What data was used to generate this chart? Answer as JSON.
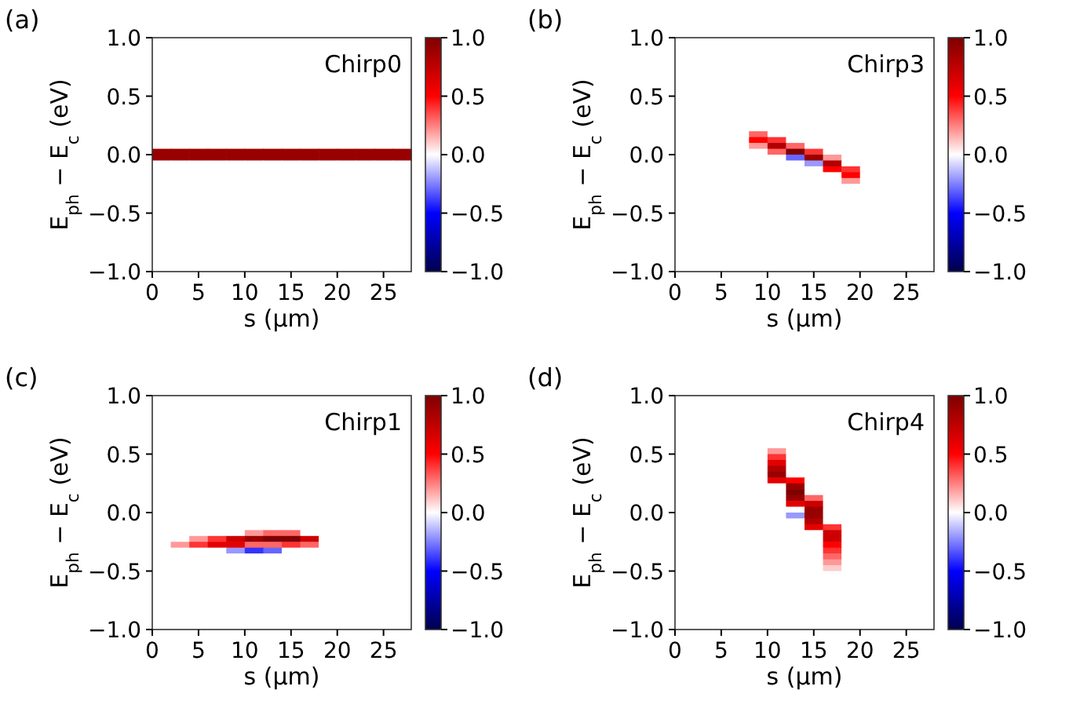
{
  "chart_data": [
    {
      "type": "heatmap",
      "title": "(a)",
      "xlabel": "s (µm)",
      "ylabel": "E$_{ph}$ − E$_{c}$ (eV)",
      "annotations": [
        "Chirp0"
      ],
      "xlim": [
        0,
        28
      ],
      "xticks": [
        0,
        5,
        10,
        15,
        20,
        25
      ],
      "ylim": [
        -1,
        1
      ],
      "yticks": [
        {
          "value": -1,
          "label": "−1.0"
        },
        {
          "value": -0.5,
          "label": "−0.5"
        },
        {
          "value": 0,
          "label": "0.0"
        },
        {
          "value": 0.5,
          "label": "0.5"
        },
        {
          "value": 1,
          "label": "1.0"
        }
      ],
      "clim": [
        -1,
        1
      ],
      "cticks": [
        {
          "value": -1,
          "label": "−1.0"
        },
        {
          "value": -0.5,
          "label": "−0.5"
        },
        {
          "value": 0,
          "label": "0.0"
        },
        {
          "value": 0.5,
          "label": "0.5"
        },
        {
          "value": 1,
          "label": "1.0"
        }
      ],
      "cells": [
        [
          0,
          0,
          0,
          0,
          0,
          0,
          0,
          0,
          0,
          0,
          0,
          0,
          0,
          0
        ],
        [
          0,
          0,
          0,
          0,
          0,
          0,
          0,
          0,
          0,
          0,
          0,
          0,
          0,
          0
        ],
        [
          0,
          0,
          0,
          0,
          0,
          0,
          0,
          0,
          0,
          0,
          0,
          0,
          0,
          0
        ],
        [
          0,
          0,
          0,
          0,
          0,
          0,
          0,
          0,
          0,
          0,
          0,
          0,
          0,
          0
        ],
        [
          0,
          0,
          0,
          0,
          0,
          0,
          0,
          0,
          0,
          0,
          0,
          0,
          0,
          0
        ],
        [
          0,
          0,
          0,
          0,
          0,
          0,
          0,
          0,
          0,
          0,
          0,
          0,
          0,
          0
        ],
        [
          0,
          0,
          0,
          0,
          0,
          0,
          0,
          0,
          0,
          0,
          0,
          0,
          0,
          0
        ],
        [
          0,
          0,
          0,
          0,
          0,
          0,
          0,
          0,
          0,
          0,
          0,
          0,
          0,
          0
        ],
        [
          0,
          0,
          0,
          0,
          0,
          0,
          0,
          0,
          0,
          0,
          0,
          0,
          0,
          0
        ],
        [
          0,
          0,
          0,
          0,
          0,
          0,
          0,
          0,
          0,
          0,
          0,
          0,
          0,
          0
        ],
        [
          0,
          0,
          0,
          0,
          0,
          0,
          0,
          0,
          0,
          0,
          0,
          0,
          0,
          0
        ],
        [
          0,
          0,
          0,
          0,
          0,
          0,
          0,
          0,
          0,
          0,
          0,
          0,
          0,
          0
        ],
        [
          0,
          0,
          0,
          0,
          0,
          0,
          0,
          0,
          0,
          0,
          0,
          0,
          0,
          0
        ],
        [
          0,
          0,
          0,
          0,
          0,
          0,
          0,
          0,
          0,
          0,
          0,
          0,
          0,
          0
        ],
        [
          0,
          0,
          0,
          0,
          0,
          0,
          0,
          0,
          0,
          0,
          0,
          0,
          0,
          0
        ],
        [
          0,
          0,
          0,
          0,
          0,
          0,
          0,
          0,
          0,
          0,
          0,
          0,
          0,
          0
        ],
        [
          0,
          0,
          0,
          0,
          0,
          0,
          0,
          0,
          0,
          0,
          0,
          0,
          0,
          0
        ],
        [
          0,
          0,
          0,
          0,
          0,
          0,
          0,
          0,
          0,
          0,
          0,
          0,
          0,
          0
        ],
        [
          0,
          0,
          0,
          0,
          0,
          0,
          0,
          0,
          0,
          0,
          0,
          0,
          0,
          0
        ],
        [
          0.9,
          0.9,
          0.9,
          0.9,
          0.9,
          0.9,
          0.9,
          0.9,
          0.9,
          0.9,
          0.9,
          0.9,
          0.9,
          0.9
        ],
        [
          0.9,
          0.9,
          0.9,
          0.9,
          0.9,
          0.9,
          0.9,
          0.9,
          0.9,
          0.9,
          0.9,
          0.9,
          0.9,
          0.9
        ],
        [
          0,
          0,
          0,
          0,
          0,
          0,
          0,
          0,
          0,
          0,
          0,
          0,
          0,
          0
        ],
        [
          0,
          0,
          0,
          0,
          0,
          0,
          0,
          0,
          0,
          0,
          0,
          0,
          0,
          0
        ],
        [
          0,
          0,
          0,
          0,
          0,
          0,
          0,
          0,
          0,
          0,
          0,
          0,
          0,
          0
        ],
        [
          0,
          0,
          0,
          0,
          0,
          0,
          0,
          0,
          0,
          0,
          0,
          0,
          0,
          0
        ],
        [
          0,
          0,
          0,
          0,
          0,
          0,
          0,
          0,
          0,
          0,
          0,
          0,
          0,
          0
        ],
        [
          0,
          0,
          0,
          0,
          0,
          0,
          0,
          0,
          0,
          0,
          0,
          0,
          0,
          0
        ],
        [
          0,
          0,
          0,
          0,
          0,
          0,
          0,
          0,
          0,
          0,
          0,
          0,
          0,
          0
        ],
        [
          0,
          0,
          0,
          0,
          0,
          0,
          0,
          0,
          0,
          0,
          0,
          0,
          0,
          0
        ],
        [
          0,
          0,
          0,
          0,
          0,
          0,
          0,
          0,
          0,
          0,
          0,
          0,
          0,
          0
        ],
        [
          0,
          0,
          0,
          0,
          0,
          0,
          0,
          0,
          0,
          0,
          0,
          0,
          0,
          0
        ],
        [
          0,
          0,
          0,
          0,
          0,
          0,
          0,
          0,
          0,
          0,
          0,
          0,
          0,
          0
        ],
        [
          0,
          0,
          0,
          0,
          0,
          0,
          0,
          0,
          0,
          0,
          0,
          0,
          0,
          0
        ],
        [
          0,
          0,
          0,
          0,
          0,
          0,
          0,
          0,
          0,
          0,
          0,
          0,
          0,
          0
        ],
        [
          0,
          0,
          0,
          0,
          0,
          0,
          0,
          0,
          0,
          0,
          0,
          0,
          0,
          0
        ],
        [
          0,
          0,
          0,
          0,
          0,
          0,
          0,
          0,
          0,
          0,
          0,
          0,
          0,
          0
        ],
        [
          0,
          0,
          0,
          0,
          0,
          0,
          0,
          0,
          0,
          0,
          0,
          0,
          0,
          0
        ],
        [
          0,
          0,
          0,
          0,
          0,
          0,
          0,
          0,
          0,
          0,
          0,
          0,
          0,
          0
        ],
        [
          0,
          0,
          0,
          0,
          0,
          0,
          0,
          0,
          0,
          0,
          0,
          0,
          0,
          0
        ],
        [
          0,
          0,
          0,
          0,
          0,
          0,
          0,
          0,
          0,
          0,
          0,
          0,
          0,
          0
        ]
      ]
    },
    {
      "type": "heatmap",
      "title": "(b)",
      "xlabel": "s (µm)",
      "ylabel": "E$_{ph}$ − E$_{c}$ (eV)",
      "annotations": [
        "Chirp3"
      ],
      "xlim": [
        0,
        28
      ],
      "xticks": [
        0,
        5,
        10,
        15,
        20,
        25
      ],
      "ylim": [
        -1,
        1
      ],
      "yticks": [
        {
          "value": -1,
          "label": "−1.0"
        },
        {
          "value": -0.5,
          "label": "−0.5"
        },
        {
          "value": 0,
          "label": "0.0"
        },
        {
          "value": 0.5,
          "label": "0.5"
        },
        {
          "value": 1,
          "label": "1.0"
        }
      ],
      "clim": [
        -1,
        1
      ],
      "cticks": [
        {
          "value": -1,
          "label": "−1.0"
        },
        {
          "value": -0.5,
          "label": "−0.5"
        },
        {
          "value": 0,
          "label": "0.0"
        },
        {
          "value": 0.5,
          "label": "0.5"
        },
        {
          "value": 1,
          "label": "1.0"
        }
      ],
      "cells": [
        [
          0,
          0,
          0,
          0,
          0,
          0,
          0,
          0,
          0,
          0,
          0,
          0,
          0,
          0
        ],
        [
          0,
          0,
          0,
          0,
          0,
          0,
          0,
          0,
          0,
          0,
          0,
          0,
          0,
          0
        ],
        [
          0,
          0,
          0,
          0,
          0,
          0,
          0,
          0,
          0,
          0,
          0,
          0,
          0,
          0
        ],
        [
          0,
          0,
          0,
          0,
          0,
          0,
          0,
          0,
          0,
          0,
          0,
          0,
          0,
          0
        ],
        [
          0,
          0,
          0,
          0,
          0,
          0,
          0,
          0,
          0,
          0,
          0,
          0,
          0,
          0
        ],
        [
          0,
          0,
          0,
          0,
          0,
          0,
          0,
          0,
          0,
          0,
          0,
          0,
          0,
          0
        ],
        [
          0,
          0,
          0,
          0,
          0,
          0,
          0,
          0,
          0,
          0,
          0,
          0,
          0,
          0
        ],
        [
          0,
          0,
          0,
          0,
          0,
          0,
          0,
          0,
          0,
          0,
          0,
          0,
          0,
          0
        ],
        [
          0,
          0,
          0,
          0,
          0,
          0,
          0,
          0,
          0,
          0,
          0,
          0,
          0,
          0
        ],
        [
          0,
          0,
          0,
          0,
          0,
          0,
          0,
          0,
          0,
          0,
          0,
          0,
          0,
          0
        ],
        [
          0,
          0,
          0,
          0,
          0,
          0,
          0,
          0,
          0,
          0,
          0,
          0,
          0,
          0
        ],
        [
          0,
          0,
          0,
          0,
          0,
          0,
          0,
          0,
          0,
          0,
          0,
          0,
          0,
          0
        ],
        [
          0,
          0,
          0,
          0,
          0,
          0,
          0,
          0,
          0,
          0,
          0,
          0,
          0,
          0
        ],
        [
          0,
          0,
          0,
          0,
          0,
          0,
          0,
          0,
          0,
          0,
          0,
          0,
          0,
          0
        ],
        [
          0,
          0,
          0,
          0,
          0,
          0,
          0,
          0,
          0,
          0,
          0,
          0,
          0,
          0
        ],
        [
          0,
          0,
          0,
          0,
          0,
          0,
          0,
          0,
          0,
          0,
          0,
          0,
          0,
          0
        ],
        [
          0,
          0,
          0,
          0,
          0.3,
          0,
          0,
          0,
          0,
          0,
          0,
          0,
          0,
          0
        ],
        [
          0,
          0,
          0,
          0,
          0.5,
          0.4,
          0,
          0,
          0,
          0,
          0,
          0,
          0,
          0
        ],
        [
          0,
          0,
          0,
          0,
          0.2,
          0.8,
          0.3,
          0,
          0,
          0,
          0,
          0,
          0,
          0
        ],
        [
          0,
          0,
          0,
          0,
          0,
          0.3,
          1,
          0.4,
          0,
          0,
          0,
          0,
          0,
          0
        ],
        [
          0,
          0,
          0,
          0,
          0,
          0,
          -0.3,
          0.9,
          0.2,
          0,
          0,
          0,
          0,
          0
        ],
        [
          0,
          0,
          0,
          0,
          0,
          0,
          0,
          -0.2,
          0.8,
          0,
          0,
          0,
          0,
          0
        ],
        [
          0,
          0,
          0,
          0,
          0,
          0,
          0,
          0,
          0.5,
          0.4,
          0,
          0,
          0,
          0
        ],
        [
          0,
          0,
          0,
          0,
          0,
          0,
          0,
          0,
          0,
          0.5,
          0,
          0,
          0,
          0
        ],
        [
          0,
          0,
          0,
          0,
          0,
          0,
          0,
          0,
          0,
          0.2,
          0,
          0,
          0,
          0
        ],
        [
          0,
          0,
          0,
          0,
          0,
          0,
          0,
          0,
          0,
          0,
          0,
          0,
          0,
          0
        ],
        [
          0,
          0,
          0,
          0,
          0,
          0,
          0,
          0,
          0,
          0,
          0,
          0,
          0,
          0
        ],
        [
          0,
          0,
          0,
          0,
          0,
          0,
          0,
          0,
          0,
          0,
          0,
          0,
          0,
          0
        ],
        [
          0,
          0,
          0,
          0,
          0,
          0,
          0,
          0,
          0,
          0,
          0,
          0,
          0,
          0
        ],
        [
          0,
          0,
          0,
          0,
          0,
          0,
          0,
          0,
          0,
          0,
          0,
          0,
          0,
          0
        ],
        [
          0,
          0,
          0,
          0,
          0,
          0,
          0,
          0,
          0,
          0,
          0,
          0,
          0,
          0
        ],
        [
          0,
          0,
          0,
          0,
          0,
          0,
          0,
          0,
          0,
          0,
          0,
          0,
          0,
          0
        ],
        [
          0,
          0,
          0,
          0,
          0,
          0,
          0,
          0,
          0,
          0,
          0,
          0,
          0,
          0
        ],
        [
          0,
          0,
          0,
          0,
          0,
          0,
          0,
          0,
          0,
          0,
          0,
          0,
          0,
          0
        ],
        [
          0,
          0,
          0,
          0,
          0,
          0,
          0,
          0,
          0,
          0,
          0,
          0,
          0,
          0
        ],
        [
          0,
          0,
          0,
          0,
          0,
          0,
          0,
          0,
          0,
          0,
          0,
          0,
          0,
          0
        ],
        [
          0,
          0,
          0,
          0,
          0,
          0,
          0,
          0,
          0,
          0,
          0,
          0,
          0,
          0
        ],
        [
          0,
          0,
          0,
          0,
          0,
          0,
          0,
          0,
          0,
          0,
          0,
          0,
          0,
          0
        ],
        [
          0,
          0,
          0,
          0,
          0,
          0,
          0,
          0,
          0,
          0,
          0,
          0,
          0,
          0
        ],
        [
          0,
          0,
          0,
          0,
          0,
          0,
          0,
          0,
          0,
          0,
          0,
          0,
          0,
          0
        ]
      ]
    },
    {
      "type": "heatmap",
      "title": "(c)",
      "xlabel": "s (µm)",
      "ylabel": "E$_{ph}$ − E$_{c}$ (eV)",
      "annotations": [
        "Chirp1"
      ],
      "xlim": [
        0,
        28
      ],
      "xticks": [
        0,
        5,
        10,
        15,
        20,
        25
      ],
      "ylim": [
        -1,
        1
      ],
      "yticks": [
        {
          "value": -1,
          "label": "−1.0"
        },
        {
          "value": -0.5,
          "label": "−0.5"
        },
        {
          "value": 0,
          "label": "0.0"
        },
        {
          "value": 0.5,
          "label": "0.5"
        },
        {
          "value": 1,
          "label": "1.0"
        }
      ],
      "clim": [
        -1,
        1
      ],
      "cticks": [
        {
          "value": -1,
          "label": "−1.0"
        },
        {
          "value": -0.5,
          "label": "−0.5"
        },
        {
          "value": 0,
          "label": "0.0"
        },
        {
          "value": 0.5,
          "label": "0.5"
        },
        {
          "value": 1,
          "label": "1.0"
        }
      ],
      "cells": [
        [
          0,
          0,
          0,
          0,
          0,
          0,
          0,
          0,
          0,
          0,
          0,
          0,
          0,
          0
        ],
        [
          0,
          0,
          0,
          0,
          0,
          0,
          0,
          0,
          0,
          0,
          0,
          0,
          0,
          0
        ],
        [
          0,
          0,
          0,
          0,
          0,
          0,
          0,
          0,
          0,
          0,
          0,
          0,
          0,
          0
        ],
        [
          0,
          0,
          0,
          0,
          0,
          0,
          0,
          0,
          0,
          0,
          0,
          0,
          0,
          0
        ],
        [
          0,
          0,
          0,
          0,
          0,
          0,
          0,
          0,
          0,
          0,
          0,
          0,
          0,
          0
        ],
        [
          0,
          0,
          0,
          0,
          0,
          0,
          0,
          0,
          0,
          0,
          0,
          0,
          0,
          0
        ],
        [
          0,
          0,
          0,
          0,
          0,
          0,
          0,
          0,
          0,
          0,
          0,
          0,
          0,
          0
        ],
        [
          0,
          0,
          0,
          0,
          0,
          0,
          0,
          0,
          0,
          0,
          0,
          0,
          0,
          0
        ],
        [
          0,
          0,
          0,
          0,
          0,
          0,
          0,
          0,
          0,
          0,
          0,
          0,
          0,
          0
        ],
        [
          0,
          0,
          0,
          0,
          0,
          0,
          0,
          0,
          0,
          0,
          0,
          0,
          0,
          0
        ],
        [
          0,
          0,
          0,
          0,
          0,
          0,
          0,
          0,
          0,
          0,
          0,
          0,
          0,
          0
        ],
        [
          0,
          0,
          0,
          0,
          0,
          0,
          0,
          0,
          0,
          0,
          0,
          0,
          0,
          0
        ],
        [
          0,
          0,
          0,
          0,
          0,
          0,
          0,
          0,
          0,
          0,
          0,
          0,
          0,
          0
        ],
        [
          0,
          0,
          0,
          0,
          0,
          0,
          0,
          0,
          0,
          0,
          0,
          0,
          0,
          0
        ],
        [
          0,
          0,
          0,
          0,
          0,
          0,
          0,
          0,
          0,
          0,
          0,
          0,
          0,
          0
        ],
        [
          0,
          0,
          0,
          0,
          0,
          0,
          0,
          0,
          0,
          0,
          0,
          0,
          0,
          0
        ],
        [
          0,
          0,
          0,
          0,
          0,
          0,
          0,
          0,
          0,
          0,
          0,
          0,
          0,
          0
        ],
        [
          0,
          0,
          0,
          0,
          0,
          0,
          0,
          0,
          0,
          0,
          0,
          0,
          0,
          0
        ],
        [
          0,
          0,
          0,
          0,
          0,
          0,
          0,
          0,
          0,
          0,
          0,
          0,
          0,
          0
        ],
        [
          0,
          0,
          0,
          0,
          0,
          0,
          0,
          0,
          0,
          0,
          0,
          0,
          0,
          0
        ],
        [
          0,
          0,
          0,
          0,
          0,
          0,
          0,
          0,
          0,
          0,
          0,
          0,
          0,
          0
        ],
        [
          0,
          0,
          0,
          0,
          0,
          0,
          0,
          0,
          0,
          0,
          0,
          0,
          0,
          0
        ],
        [
          0,
          0,
          0,
          0,
          0,
          0,
          0,
          0,
          0,
          0,
          0,
          0,
          0,
          0
        ],
        [
          0,
          0,
          0,
          0,
          0,
          0.2,
          0.3,
          0.3,
          0,
          0,
          0,
          0,
          0,
          0
        ],
        [
          0,
          0,
          0.2,
          0.4,
          0.7,
          0.9,
          1,
          1,
          0.7,
          0,
          0,
          0,
          0,
          0
        ],
        [
          0,
          0.2,
          0.4,
          0.6,
          0.6,
          0.3,
          0.3,
          0.4,
          0.3,
          0,
          0,
          0,
          0,
          0
        ],
        [
          0,
          0,
          0,
          0,
          -0.2,
          -0.4,
          -0.3,
          0,
          0,
          0,
          0,
          0,
          0,
          0
        ],
        [
          0,
          0,
          0,
          0,
          0,
          0,
          0,
          0,
          0,
          0,
          0,
          0,
          0,
          0
        ],
        [
          0,
          0,
          0,
          0,
          0,
          0,
          0,
          0,
          0,
          0,
          0,
          0,
          0,
          0
        ],
        [
          0,
          0,
          0,
          0,
          0,
          0,
          0,
          0,
          0,
          0,
          0,
          0,
          0,
          0
        ],
        [
          0,
          0,
          0,
          0,
          0,
          0,
          0,
          0,
          0,
          0,
          0,
          0,
          0,
          0
        ],
        [
          0,
          0,
          0,
          0,
          0,
          0,
          0,
          0,
          0,
          0,
          0,
          0,
          0,
          0
        ],
        [
          0,
          0,
          0,
          0,
          0,
          0,
          0,
          0,
          0,
          0,
          0,
          0,
          0,
          0
        ],
        [
          0,
          0,
          0,
          0,
          0,
          0,
          0,
          0,
          0,
          0,
          0,
          0,
          0,
          0
        ],
        [
          0,
          0,
          0,
          0,
          0,
          0,
          0,
          0,
          0,
          0,
          0,
          0,
          0,
          0
        ],
        [
          0,
          0,
          0,
          0,
          0,
          0,
          0,
          0,
          0,
          0,
          0,
          0,
          0,
          0
        ],
        [
          0,
          0,
          0,
          0,
          0,
          0,
          0,
          0,
          0,
          0,
          0,
          0,
          0,
          0
        ],
        [
          0,
          0,
          0,
          0,
          0,
          0,
          0,
          0,
          0,
          0,
          0,
          0,
          0,
          0
        ],
        [
          0,
          0,
          0,
          0,
          0,
          0,
          0,
          0,
          0,
          0,
          0,
          0,
          0,
          0
        ],
        [
          0,
          0,
          0,
          0,
          0,
          0,
          0,
          0,
          0,
          0,
          0,
          0,
          0,
          0
        ]
      ]
    },
    {
      "type": "heatmap",
      "title": "(d)",
      "xlabel": "s (µm)",
      "ylabel": "E$_{ph}$ − E$_{c}$ (eV)",
      "annotations": [
        "Chirp4"
      ],
      "xlim": [
        0,
        28
      ],
      "xticks": [
        0,
        5,
        10,
        15,
        20,
        25
      ],
      "ylim": [
        -1,
        1
      ],
      "yticks": [
        {
          "value": -1,
          "label": "−1.0"
        },
        {
          "value": -0.5,
          "label": "−0.5"
        },
        {
          "value": 0,
          "label": "0.0"
        },
        {
          "value": 0.5,
          "label": "0.5"
        },
        {
          "value": 1,
          "label": "1.0"
        }
      ],
      "clim": [
        -1,
        1
      ],
      "cticks": [
        {
          "value": -1,
          "label": "−1.0"
        },
        {
          "value": -0.5,
          "label": "−0.5"
        },
        {
          "value": 0,
          "label": "0.0"
        },
        {
          "value": 0.5,
          "label": "0.5"
        },
        {
          "value": 1,
          "label": "1.0"
        }
      ],
      "cells": [
        [
          0,
          0,
          0,
          0,
          0,
          0,
          0,
          0,
          0,
          0,
          0,
          0,
          0,
          0
        ],
        [
          0,
          0,
          0,
          0,
          0,
          0,
          0,
          0,
          0,
          0,
          0,
          0,
          0,
          0
        ],
        [
          0,
          0,
          0,
          0,
          0,
          0,
          0,
          0,
          0,
          0,
          0,
          0,
          0,
          0
        ],
        [
          0,
          0,
          0,
          0,
          0,
          0,
          0,
          0,
          0,
          0,
          0,
          0,
          0,
          0
        ],
        [
          0,
          0,
          0,
          0,
          0,
          0,
          0,
          0,
          0,
          0,
          0,
          0,
          0,
          0
        ],
        [
          0,
          0,
          0,
          0,
          0,
          0,
          0,
          0,
          0,
          0,
          0,
          0,
          0,
          0
        ],
        [
          0,
          0,
          0,
          0,
          0,
          0,
          0,
          0,
          0,
          0,
          0,
          0,
          0,
          0
        ],
        [
          0,
          0,
          0,
          0,
          0,
          0,
          0,
          0,
          0,
          0,
          0,
          0,
          0,
          0
        ],
        [
          0,
          0,
          0,
          0,
          0,
          0,
          0,
          0,
          0,
          0,
          0,
          0,
          0,
          0
        ],
        [
          0,
          0,
          0,
          0,
          0,
          0.2,
          0,
          0,
          0,
          0,
          0,
          0,
          0,
          0
        ],
        [
          0,
          0,
          0,
          0,
          0,
          0.4,
          0,
          0,
          0,
          0,
          0,
          0,
          0,
          0
        ],
        [
          0,
          0,
          0,
          0,
          0,
          0.6,
          0,
          0,
          0,
          0,
          0,
          0,
          0,
          0
        ],
        [
          0,
          0,
          0,
          0,
          0,
          0.8,
          0,
          0,
          0,
          0,
          0,
          0,
          0,
          0
        ],
        [
          0,
          0,
          0,
          0,
          0,
          0.9,
          0,
          0,
          0,
          0,
          0,
          0,
          0,
          0
        ],
        [
          0,
          0,
          0,
          0,
          0,
          0.6,
          0.5,
          0,
          0,
          0,
          0,
          0,
          0,
          0
        ],
        [
          0,
          0,
          0,
          0,
          0,
          0,
          0.9,
          0,
          0,
          0,
          0,
          0,
          0,
          0
        ],
        [
          0,
          0,
          0,
          0,
          0,
          0,
          1,
          0,
          0,
          0,
          0,
          0,
          0,
          0
        ],
        [
          0,
          0,
          0,
          0,
          0,
          0,
          0.9,
          0.3,
          0,
          0,
          0,
          0,
          0,
          0
        ],
        [
          0,
          0,
          0,
          0,
          0,
          0,
          0.6,
          0.7,
          0,
          0,
          0,
          0,
          0,
          0
        ],
        [
          0,
          0,
          0,
          0,
          0,
          0,
          0,
          0.9,
          0,
          0,
          0,
          0,
          0,
          0
        ],
        [
          0,
          0,
          0,
          0,
          0,
          0,
          -0.2,
          0.9,
          0,
          0,
          0,
          0,
          0,
          0
        ],
        [
          0,
          0,
          0,
          0,
          0,
          0,
          0,
          0.8,
          0,
          0,
          0,
          0,
          0,
          0
        ],
        [
          0,
          0,
          0,
          0,
          0,
          0,
          0,
          0.6,
          0.4,
          0,
          0,
          0,
          0,
          0
        ],
        [
          0,
          0,
          0,
          0,
          0,
          0,
          0,
          0,
          0.7,
          0,
          0,
          0,
          0,
          0
        ],
        [
          0,
          0,
          0,
          0,
          0,
          0,
          0,
          0,
          0.7,
          0,
          0,
          0,
          0,
          0
        ],
        [
          0,
          0,
          0,
          0,
          0,
          0,
          0,
          0,
          0.5,
          0,
          0,
          0,
          0,
          0
        ],
        [
          0,
          0,
          0,
          0,
          0,
          0,
          0,
          0,
          0.4,
          0,
          0,
          0,
          0,
          0
        ],
        [
          0,
          0,
          0,
          0,
          0,
          0,
          0,
          0,
          0.3,
          0,
          0,
          0,
          0,
          0
        ],
        [
          0,
          0,
          0,
          0,
          0,
          0,
          0,
          0,
          0.2,
          0,
          0,
          0,
          0,
          0
        ],
        [
          0,
          0,
          0,
          0,
          0,
          0,
          0,
          0,
          0.1,
          0,
          0,
          0,
          0,
          0
        ],
        [
          0,
          0,
          0,
          0,
          0,
          0,
          0,
          0,
          0,
          0,
          0,
          0,
          0,
          0
        ],
        [
          0,
          0,
          0,
          0,
          0,
          0,
          0,
          0,
          0,
          0,
          0,
          0,
          0,
          0
        ],
        [
          0,
          0,
          0,
          0,
          0,
          0,
          0,
          0,
          0,
          0,
          0,
          0,
          0,
          0
        ],
        [
          0,
          0,
          0,
          0,
          0,
          0,
          0,
          0,
          0,
          0,
          0,
          0,
          0,
          0
        ],
        [
          0,
          0,
          0,
          0,
          0,
          0,
          0,
          0,
          0,
          0,
          0,
          0,
          0,
          0
        ],
        [
          0,
          0,
          0,
          0,
          0,
          0,
          0,
          0,
          0,
          0,
          0,
          0,
          0,
          0
        ],
        [
          0,
          0,
          0,
          0,
          0,
          0,
          0,
          0,
          0,
          0,
          0,
          0,
          0,
          0
        ],
        [
          0,
          0,
          0,
          0,
          0,
          0,
          0,
          0,
          0,
          0,
          0,
          0,
          0,
          0
        ],
        [
          0,
          0,
          0,
          0,
          0,
          0,
          0,
          0,
          0,
          0,
          0,
          0,
          0,
          0
        ],
        [
          0,
          0,
          0,
          0,
          0,
          0,
          0,
          0,
          0,
          0,
          0,
          0,
          0,
          0
        ]
      ]
    }
  ]
}
